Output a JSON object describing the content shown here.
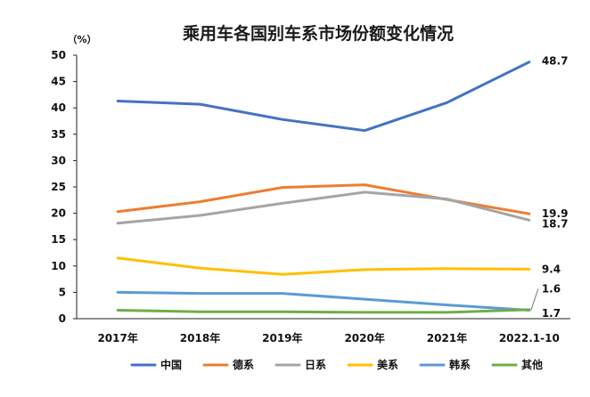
{
  "chart_data": {
    "type": "line",
    "title": "乘用车各国别车系市场份额变化情况",
    "y_unit": "（%）",
    "ylim": [
      0,
      50
    ],
    "yticks": [
      0,
      5,
      10,
      15,
      20,
      25,
      30,
      35,
      40,
      45,
      50
    ],
    "categories": [
      "2017年",
      "2018年",
      "2019年",
      "2020年",
      "2021年",
      "2022.1-10"
    ],
    "legend_position": "bottom",
    "grid": false,
    "series": [
      {
        "name": "中国",
        "color": "#4472C4",
        "values": [
          41.3,
          40.7,
          37.8,
          35.7,
          41.0,
          48.7
        ],
        "end_label": "48.7"
      },
      {
        "name": "德系",
        "color": "#ED7D31",
        "values": [
          20.3,
          22.2,
          24.9,
          25.4,
          22.6,
          19.9
        ],
        "end_label": "19.9"
      },
      {
        "name": "日系",
        "color": "#A5A5A5",
        "values": [
          18.1,
          19.6,
          21.9,
          24.0,
          22.7,
          18.7
        ],
        "end_label": "18.7"
      },
      {
        "name": "美系",
        "color": "#FFC000",
        "values": [
          11.5,
          9.6,
          8.4,
          9.3,
          9.5,
          9.4
        ],
        "end_label": "9.4"
      },
      {
        "name": "韩系",
        "color": "#5B9BD5",
        "values": [
          5.0,
          4.8,
          4.8,
          3.7,
          2.6,
          1.6
        ],
        "end_label": "1.6"
      },
      {
        "name": "其他",
        "color": "#70AD47",
        "values": [
          1.6,
          1.3,
          1.3,
          1.2,
          1.2,
          1.7
        ],
        "end_label": "1.7"
      }
    ]
  }
}
